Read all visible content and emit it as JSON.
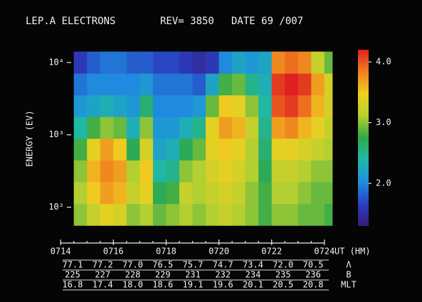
{
  "chart_data": {
    "type": "heatmap",
    "title": "LEP.A ELECTRONS",
    "subtitle": "REV= 3850",
    "annotations": [
      "DATE 69 /007"
    ],
    "x_label": "UT (HM)",
    "y_label": "ENERGY (EV)",
    "xlim": [
      434.4,
      444.3
    ],
    "xticks": [
      {
        "value": 434,
        "label": "0714"
      },
      {
        "value": 436,
        "label": "0716"
      },
      {
        "value": 438,
        "label": "0718"
      },
      {
        "value": 440,
        "label": "0720"
      },
      {
        "value": 442,
        "label": "0722"
      },
      {
        "value": 444,
        "label": "0724"
      }
    ],
    "log_y": true,
    "ylim": [
      55,
      15000
    ],
    "yticks": [
      {
        "value": 100,
        "label": "10²"
      },
      {
        "value": 1000,
        "label": "10³"
      },
      {
        "value": 10000,
        "label": "10⁴"
      }
    ],
    "clim": [
      1.3,
      4.2
    ],
    "cticks": [
      {
        "value": 2,
        "label": "2.0"
      },
      {
        "value": 3,
        "label": "3.0"
      },
      {
        "value": 4,
        "label": "4.0"
      }
    ],
    "colorscale": [
      "#3a1a7a",
      "#2a3fc0",
      "#1e90e0",
      "#20b8a8",
      "#2fa84a",
      "#b8d030",
      "#f0d020",
      "#f08020",
      "#e02020"
    ],
    "x": [
      434.75,
      435.25,
      435.75,
      436.25,
      436.75,
      437.25,
      437.75,
      438.25,
      438.75,
      439.25,
      439.75,
      440.25,
      440.75,
      441.25,
      441.75,
      442.25,
      442.75,
      443.25,
      443.75,
      444.25
    ],
    "y": [
      79,
      158,
      316,
      631,
      1259,
      2512,
      5012,
      10000
    ],
    "z": [
      [
        3.0,
        3.1,
        3.0,
        2.8,
        2.4,
        2.1,
        1.9,
        1.6
      ],
      [
        3.2,
        3.5,
        3.6,
        3.4,
        2.8,
        2.2,
        2.0,
        1.8
      ],
      [
        3.4,
        3.7,
        3.8,
        3.7,
        3.0,
        2.3,
        2.0,
        1.9
      ],
      [
        3.3,
        3.6,
        3.7,
        3.5,
        2.9,
        2.2,
        2.0,
        1.9
      ],
      [
        3.0,
        3.2,
        3.1,
        2.7,
        2.3,
        2.1,
        2.0,
        1.8
      ],
      [
        3.1,
        3.4,
        3.5,
        3.3,
        3.0,
        2.6,
        2.1,
        1.8
      ],
      [
        2.9,
        2.7,
        2.4,
        2.2,
        2.1,
        2.0,
        1.9,
        1.7
      ],
      [
        3.0,
        2.8,
        2.5,
        2.3,
        2.1,
        2.0,
        1.9,
        1.7
      ],
      [
        3.1,
        3.2,
        3.0,
        2.7,
        2.3,
        2.0,
        1.9,
        1.6
      ],
      [
        3.0,
        3.1,
        3.1,
        2.9,
        2.5,
        2.1,
        1.8,
        1.5
      ],
      [
        3.1,
        3.2,
        3.3,
        3.4,
        3.4,
        2.9,
        2.2,
        1.6
      ],
      [
        3.2,
        3.3,
        3.4,
        3.5,
        3.7,
        3.5,
        2.8,
        2.0
      ],
      [
        3.1,
        3.2,
        3.3,
        3.4,
        3.6,
        3.4,
        2.9,
        2.2
      ],
      [
        3.0,
        3.0,
        3.1,
        3.1,
        3.2,
        3.0,
        2.5,
        2.1
      ],
      [
        2.8,
        2.8,
        2.7,
        2.6,
        2.5,
        2.4,
        2.3,
        2.2
      ],
      [
        3.0,
        3.1,
        3.2,
        3.4,
        3.7,
        4.0,
        4.1,
        3.8
      ],
      [
        3.0,
        3.1,
        3.2,
        3.4,
        3.8,
        4.1,
        4.2,
        3.9
      ],
      [
        2.9,
        3.0,
        3.1,
        3.3,
        3.6,
        3.9,
        4.1,
        3.8
      ],
      [
        2.9,
        2.9,
        3.0,
        3.2,
        3.4,
        3.6,
        3.7,
        3.2
      ],
      [
        2.8,
        2.9,
        3.0,
        3.1,
        3.2,
        3.3,
        3.3,
        2.9
      ]
    ],
    "table": {
      "rows": [
        {
          "label": "Λ",
          "values": [
            "77.1",
            "77.2",
            "77.0",
            "76.5",
            "75.7",
            "74.7",
            "73.4",
            "72.0",
            "70.5"
          ]
        },
        {
          "label": "B",
          "values": [
            "225",
            "227",
            "228",
            "229",
            "231",
            "232",
            "234",
            "235",
            "236"
          ]
        },
        {
          "label": "MLT",
          "values": [
            "16.8",
            "17.4",
            "18.0",
            "18.6",
            "19.1",
            "19.6",
            "20.1",
            "20.5",
            "20.8"
          ]
        }
      ]
    }
  }
}
